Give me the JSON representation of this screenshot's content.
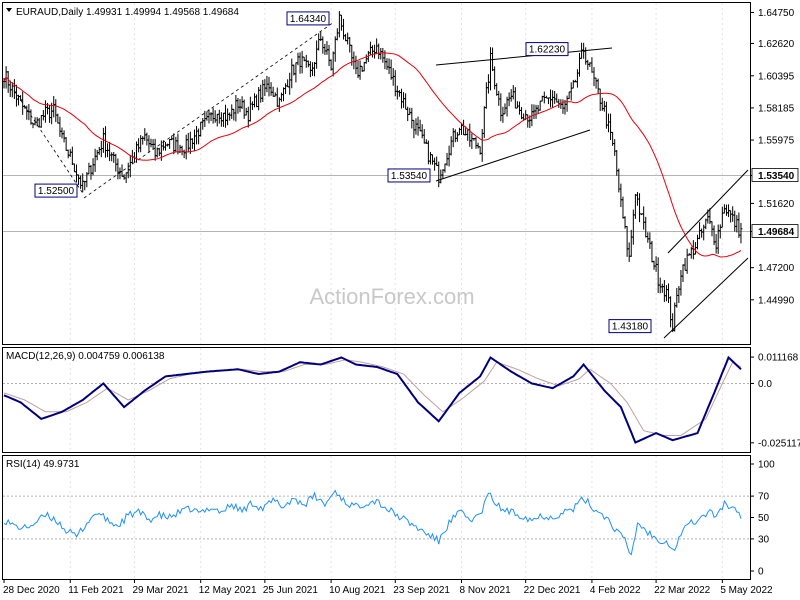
{
  "chart_data": [
    {
      "type": "candlestick",
      "panel": "price",
      "symbol": "EURAUD,Daily",
      "ohlc": {
        "open": "1.49931",
        "high": "1.49994",
        "low": "1.49568",
        "close": "1.49684"
      },
      "watermark": "ActionForex.com",
      "ylim": [
        1.4195,
        1.654
      ],
      "y_ticks": [
        "1.64750",
        "1.62620",
        "1.60395",
        "1.58185",
        "1.55975",
        "1.53540",
        "1.51620",
        "1.49684",
        "1.47200",
        "1.44990"
      ],
      "x_tick_labels": [
        "28 Dec 2020",
        "11 Feb 2021",
        "29 Mar 2021",
        "12 May 2021",
        "25 Jun 2021",
        "10 Aug 2021",
        "23 Sep 2021",
        "8 Nov 2021",
        "22 Dec 2021",
        "4 Feb 2022",
        "22 Mar 2022",
        "5 May 2022"
      ],
      "close_path": [
        [
          0,
          1.605
        ],
        [
          5,
          1.592
        ],
        [
          10,
          1.58
        ],
        [
          15,
          1.57
        ],
        [
          20,
          1.578
        ],
        [
          24,
          1.58
        ],
        [
          28,
          1.56
        ],
        [
          33,
          1.545
        ],
        [
          38,
          1.527
        ],
        [
          43,
          1.545
        ],
        [
          48,
          1.56
        ],
        [
          53,
          1.545
        ],
        [
          58,
          1.535
        ],
        [
          63,
          1.55
        ],
        [
          68,
          1.562
        ],
        [
          73,
          1.55
        ],
        [
          78,
          1.558
        ],
        [
          83,
          1.556
        ],
        [
          88,
          1.555
        ],
        [
          93,
          1.565
        ],
        [
          98,
          1.572
        ],
        [
          103,
          1.58
        ],
        [
          108,
          1.575
        ],
        [
          113,
          1.585
        ],
        [
          118,
          1.578
        ],
        [
          123,
          1.59
        ],
        [
          128,
          1.598
        ],
        [
          133,
          1.585
        ],
        [
          138,
          1.605
        ],
        [
          143,
          1.615
        ],
        [
          148,
          1.605
        ],
        [
          153,
          1.63
        ],
        [
          158,
          1.61
        ],
        [
          162,
          1.6434
        ],
        [
          165,
          1.63
        ],
        [
          170,
          1.605
        ],
        [
          175,
          1.615
        ],
        [
          180,
          1.625
        ],
        [
          185,
          1.61
        ],
        [
          190,
          1.595
        ],
        [
          195,
          1.58
        ],
        [
          200,
          1.565
        ],
        [
          205,
          1.55
        ],
        [
          210,
          1.5354
        ],
        [
          215,
          1.555
        ],
        [
          220,
          1.57
        ],
        [
          225,
          1.56
        ],
        [
          230,
          1.555
        ],
        [
          235,
          1.615
        ],
        [
          240,
          1.58
        ],
        [
          245,
          1.59
        ],
        [
          250,
          1.58
        ],
        [
          255,
          1.575
        ],
        [
          260,
          1.585
        ],
        [
          265,
          1.59
        ],
        [
          270,
          1.58
        ],
        [
          275,
          1.595
        ],
        [
          280,
          1.6223
        ],
        [
          285,
          1.6
        ],
        [
          290,
          1.58
        ],
        [
          295,
          1.55
        ],
        [
          298,
          1.515
        ],
        [
          302,
          1.478
        ],
        [
          305,
          1.525
        ],
        [
          308,
          1.505
        ],
        [
          312,
          1.485
        ],
        [
          316,
          1.465
        ],
        [
          320,
          1.455
        ],
        [
          323,
          1.4318
        ],
        [
          327,
          1.47
        ],
        [
          331,
          1.48
        ],
        [
          335,
          1.49
        ],
        [
          340,
          1.505
        ],
        [
          344,
          1.49
        ],
        [
          348,
          1.515
        ],
        [
          352,
          1.505
        ],
        [
          356,
          1.4968
        ]
      ],
      "bar_count": 357,
      "horizontal_levels": [
        1.5354,
        1.49684
      ],
      "price_labels": [
        {
          "text": "1.64340",
          "value": 1.6434
        },
        {
          "text": "1.52500",
          "value": 1.525
        },
        {
          "text": "1.53540",
          "value": 1.5354
        },
        {
          "text": "1.62230",
          "value": 1.6223
        },
        {
          "text": "1.43180",
          "value": 1.4318
        }
      ],
      "axis_markers": [
        {
          "text": "1.53540",
          "value": 1.5354
        },
        {
          "text": "1.49684",
          "value": 1.49684
        }
      ],
      "colors": {
        "bars": "#000000",
        "ma": "#e8000c",
        "hline": "#b4b4b4",
        "grid": "#b4b4b4"
      }
    },
    {
      "type": "line",
      "panel": "macd",
      "header": "MACD(12,26,9) 0.004759 0.006138",
      "ylim": [
        -0.029,
        0.015
      ],
      "y_ticks": [
        "0.011168",
        "0.0",
        "-0.025117"
      ],
      "series": [
        {
          "color": "#00007f",
          "values": [
            [
              0,
              -0.005
            ],
            [
              8,
              -0.008
            ],
            [
              18,
              -0.015
            ],
            [
              28,
              -0.012
            ],
            [
              38,
              -0.007
            ],
            [
              48,
              0.0
            ],
            [
              58,
              -0.01
            ],
            [
              68,
              -0.003
            ],
            [
              78,
              0.003
            ],
            [
              88,
              0.004
            ],
            [
              98,
              0.005
            ],
            [
              113,
              0.006
            ],
            [
              123,
              0.004
            ],
            [
              133,
              0.005
            ],
            [
              143,
              0.009
            ],
            [
              153,
              0.008
            ],
            [
              163,
              0.011
            ],
            [
              170,
              0.008
            ],
            [
              180,
              0.007
            ],
            [
              190,
              0.004
            ],
            [
              200,
              -0.008
            ],
            [
              210,
              -0.016
            ],
            [
              220,
              -0.004
            ],
            [
              230,
              0.003
            ],
            [
              235,
              0.011
            ],
            [
              245,
              0.005
            ],
            [
              255,
              0.0
            ],
            [
              265,
              -0.002
            ],
            [
              275,
              0.003
            ],
            [
              280,
              0.008
            ],
            [
              290,
              -0.003
            ],
            [
              298,
              -0.01
            ],
            [
              305,
              -0.025
            ],
            [
              315,
              -0.021
            ],
            [
              323,
              -0.024
            ],
            [
              335,
              -0.021
            ],
            [
              344,
              -0.002
            ],
            [
              350,
              0.011
            ],
            [
              356,
              0.006
            ]
          ]
        },
        {
          "color": "#c0a0a0",
          "values": [
            [
              0,
              -0.004
            ],
            [
              10,
              -0.007
            ],
            [
              20,
              -0.012
            ],
            [
              30,
              -0.012
            ],
            [
              40,
              -0.008
            ],
            [
              50,
              -0.002
            ],
            [
              60,
              -0.007
            ],
            [
              70,
              -0.003
            ],
            [
              80,
              0.002
            ],
            [
              90,
              0.004
            ],
            [
              100,
              0.005
            ],
            [
              115,
              0.006
            ],
            [
              125,
              0.005
            ],
            [
              135,
              0.005
            ],
            [
              145,
              0.008
            ],
            [
              155,
              0.008
            ],
            [
              165,
              0.01
            ],
            [
              173,
              0.009
            ],
            [
              183,
              0.007
            ],
            [
              193,
              0.004
            ],
            [
              203,
              -0.005
            ],
            [
              212,
              -0.012
            ],
            [
              222,
              -0.006
            ],
            [
              232,
              0.001
            ],
            [
              238,
              0.009
            ],
            [
              248,
              0.006
            ],
            [
              258,
              0.002
            ],
            [
              268,
              -0.001
            ],
            [
              278,
              0.002
            ],
            [
              283,
              0.006
            ],
            [
              293,
              0.0
            ],
            [
              301,
              -0.008
            ],
            [
              309,
              -0.02
            ],
            [
              319,
              -0.022
            ],
            [
              327,
              -0.022
            ],
            [
              339,
              -0.015
            ],
            [
              347,
              0.0
            ],
            [
              352,
              0.009
            ],
            [
              356,
              0.007
            ]
          ]
        }
      ]
    },
    {
      "type": "line",
      "panel": "rsi",
      "header": "RSI(14) 49.9731",
      "ylim": [
        0,
        100
      ],
      "y_ticks": [
        "100",
        "70",
        "50",
        "30",
        "0"
      ],
      "y_tick_values": [
        100,
        70,
        50,
        30,
        0
      ],
      "guide_levels": [
        70,
        30
      ],
      "series": [
        {
          "color": "#1e90ff",
          "values": [
            [
              0,
              48
            ],
            [
              5,
              42
            ],
            [
              10,
              40
            ],
            [
              15,
              45
            ],
            [
              20,
              52
            ],
            [
              25,
              48
            ],
            [
              30,
              38
            ],
            [
              35,
              32
            ],
            [
              40,
              45
            ],
            [
              45,
              55
            ],
            [
              50,
              47
            ],
            [
              55,
              42
            ],
            [
              60,
              52
            ],
            [
              65,
              55
            ],
            [
              70,
              48
            ],
            [
              75,
              52
            ],
            [
              80,
              50
            ],
            [
              85,
              55
            ],
            [
              90,
              58
            ],
            [
              95,
              54
            ],
            [
              100,
              60
            ],
            [
              105,
              55
            ],
            [
              110,
              62
            ],
            [
              115,
              56
            ],
            [
              120,
              64
            ],
            [
              125,
              58
            ],
            [
              130,
              66
            ],
            [
              135,
              60
            ],
            [
              140,
              68
            ],
            [
              145,
              62
            ],
            [
              150,
              70
            ],
            [
              155,
              62
            ],
            [
              160,
              75
            ],
            [
              165,
              64
            ],
            [
              170,
              60
            ],
            [
              175,
              64
            ],
            [
              180,
              66
            ],
            [
              185,
              58
            ],
            [
              190,
              52
            ],
            [
              195,
              46
            ],
            [
              200,
              40
            ],
            [
              205,
              34
            ],
            [
              210,
              28
            ],
            [
              215,
              45
            ],
            [
              220,
              55
            ],
            [
              225,
              48
            ],
            [
              230,
              52
            ],
            [
              234,
              72
            ],
            [
              240,
              58
            ],
            [
              245,
              55
            ],
            [
              250,
              52
            ],
            [
              255,
              48
            ],
            [
              260,
              52
            ],
            [
              265,
              50
            ],
            [
              270,
              55
            ],
            [
              275,
              58
            ],
            [
              280,
              68
            ],
            [
              285,
              58
            ],
            [
              290,
              52
            ],
            [
              295,
              40
            ],
            [
              300,
              28
            ],
            [
              303,
              14
            ],
            [
              306,
              45
            ],
            [
              310,
              38
            ],
            [
              315,
              30
            ],
            [
              320,
              28
            ],
            [
              324,
              20
            ],
            [
              328,
              40
            ],
            [
              332,
              45
            ],
            [
              336,
              48
            ],
            [
              340,
              55
            ],
            [
              344,
              52
            ],
            [
              348,
              63
            ],
            [
              352,
              58
            ],
            [
              356,
              50
            ]
          ]
        }
      ]
    }
  ]
}
